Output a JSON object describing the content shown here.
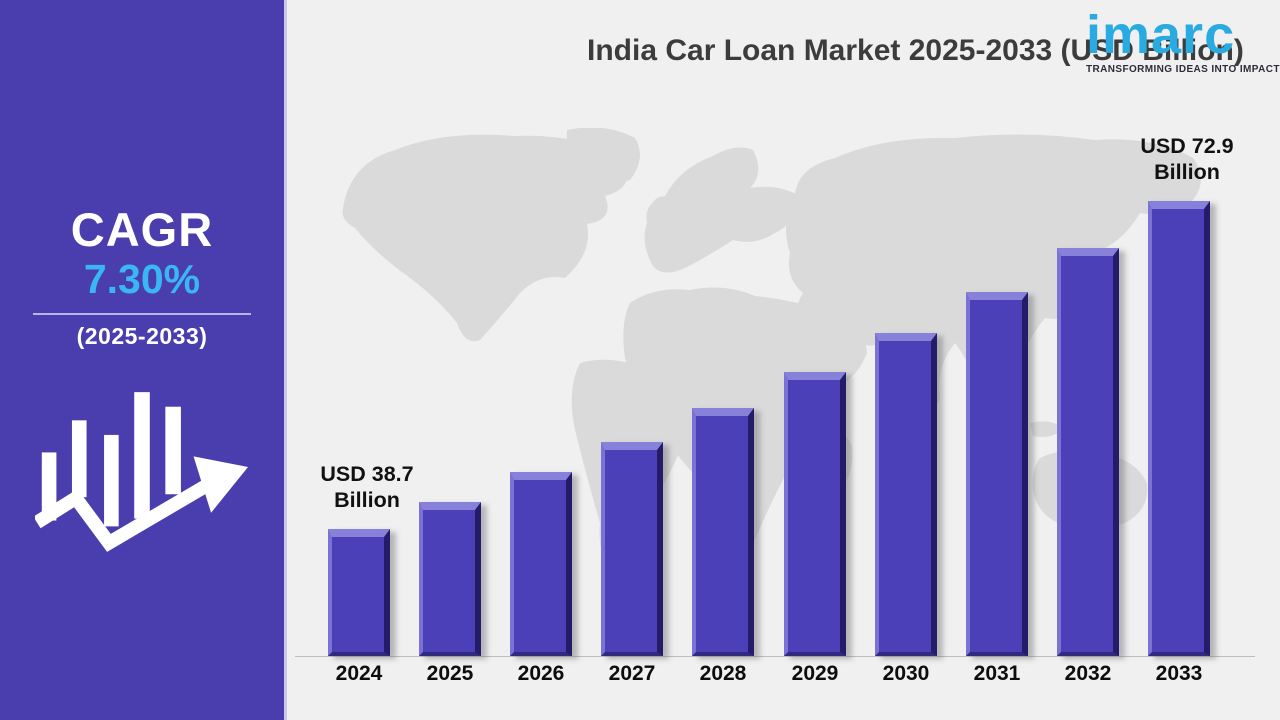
{
  "sidebar": {
    "cagr_label": "CAGR",
    "cagr_value": "7.30%",
    "period": "(2025-2033)",
    "bg_color": "#4a3eae",
    "accent_color": "#3ab7f2",
    "icon": "bar-chart-trend-arrow-icon"
  },
  "header": {
    "title": "India Car Loan Market 2025-2033 (USD Billion)"
  },
  "logo": {
    "name": "imarc",
    "tagline": "TRANSFORMING IDEAS INTO IMPACT",
    "color": "#29abe2",
    "icon": "imarc-wordmark-logo"
  },
  "chart_data": {
    "type": "bar",
    "title": "India Car Loan Market 2025-2033 (USD Billion)",
    "categories": [
      "2024",
      "2025",
      "2026",
      "2027",
      "2028",
      "2029",
      "2030",
      "2031",
      "2032",
      "2033"
    ],
    "values": [
      38.7,
      41.5,
      44.6,
      47.8,
      51.3,
      55.1,
      59.1,
      63.4,
      68.0,
      72.9
    ],
    "unit": "USD Billion",
    "labeled_points": [
      {
        "category": "2024",
        "label": "USD 38.7 Billion"
      },
      {
        "category": "2033",
        "label": "USD 72.9 Billion"
      }
    ],
    "xlabel": "",
    "ylabel": "",
    "ylim": [
      25.45,
      75
    ],
    "grid": false,
    "legend": false,
    "bar_color": "#4c40b8",
    "background": "world-map-silhouette",
    "background_color": "#f0f0f1",
    "map_color": "#dadadb"
  }
}
